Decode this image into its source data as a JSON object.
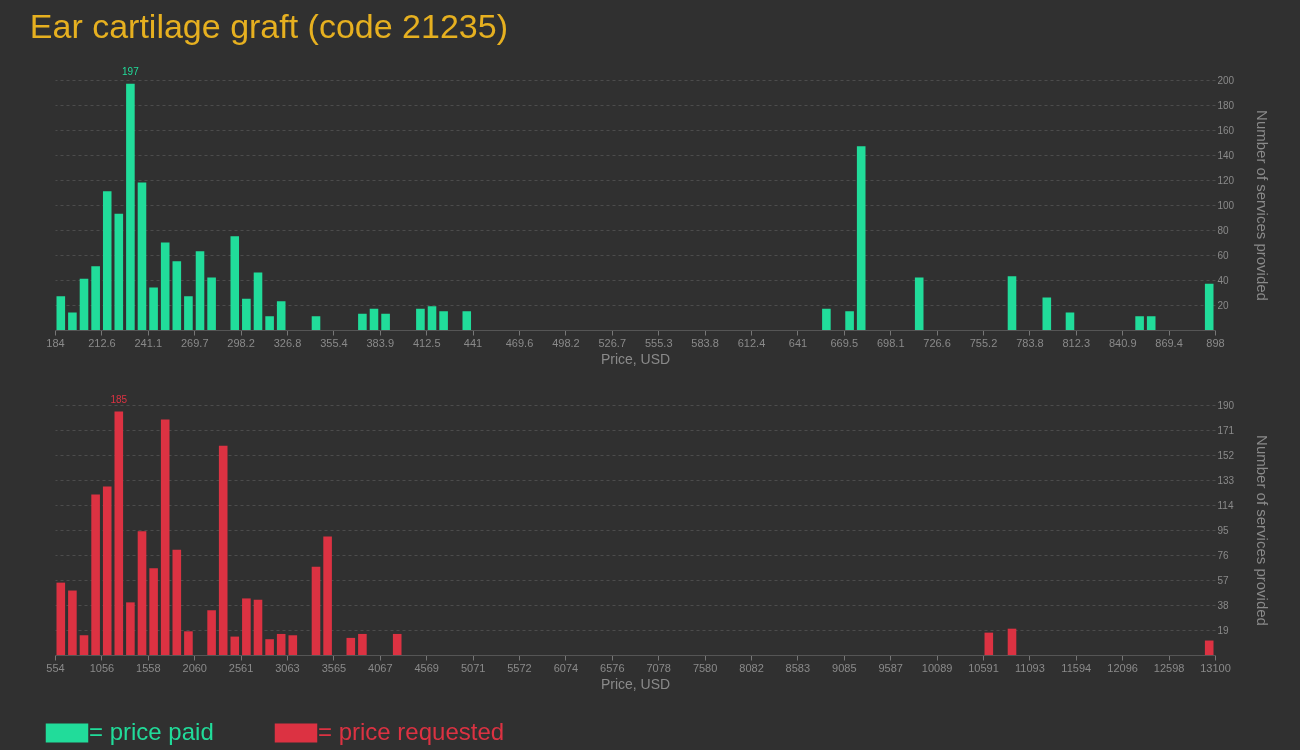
{
  "chart_data": [
    {
      "type": "histogram",
      "title": "Ear cartilage graft (code 21235)",
      "xlabel": "Price, USD",
      "ylabel": "Number of services provided",
      "grid": "y",
      "legend": "bottom",
      "bins": [
        184,
        191.14,
        198.28,
        205.42,
        212.6,
        219.7,
        226.84,
        233.98,
        241.1,
        248.26,
        255.4,
        262.54,
        269.7,
        276.82,
        283.96,
        291.1,
        298.2,
        305.38,
        312.52,
        319.66,
        326.8,
        333.94,
        341.08,
        348.22,
        355.4,
        362.5,
        369.64,
        376.78,
        383.9,
        391.06,
        398.2,
        405.34,
        412.5,
        419.62,
        426.76,
        433.9,
        441,
        448.18,
        455.32,
        462.46,
        469.6,
        476.74,
        483.88,
        491.02,
        498.2,
        505.3,
        512.44,
        519.58,
        526.7,
        533.86,
        541,
        548.14,
        555.3,
        562.42,
        569.56,
        576.7,
        583.8,
        590.98,
        598.12,
        605.26,
        612.4,
        619.54,
        626.68,
        633.82,
        641,
        648.1,
        655.24,
        662.38,
        669.5,
        676.66,
        683.8,
        690.94,
        698.1,
        705.22,
        712.36,
        719.5,
        726.6,
        733.78,
        740.92,
        748.06,
        755.2,
        762.34,
        769.48,
        776.62,
        783.8,
        790.9,
        798.04,
        805.18,
        812.3,
        819.46,
        826.6,
        833.74,
        840.9,
        848.02,
        855.16,
        862.3,
        869.4,
        876.58,
        883.72,
        890.86,
        898
      ],
      "series": [
        {
          "name": "= price paid",
          "color": "#21dc9a",
          "values": [
            27,
            14,
            41,
            51,
            111,
            93,
            197,
            118,
            34,
            70,
            55,
            27,
            63,
            42,
            0,
            75,
            25,
            46,
            11,
            23,
            0,
            0,
            11,
            0,
            0,
            0,
            13,
            17,
            13,
            0,
            0,
            17,
            19,
            15,
            0,
            15,
            0,
            0,
            0,
            0,
            0,
            0,
            0,
            0,
            0,
            0,
            0,
            0,
            0,
            0,
            0,
            0,
            0,
            0,
            0,
            0,
            0,
            0,
            0,
            0,
            0,
            0,
            0,
            0,
            0,
            0,
            17,
            0,
            15,
            147,
            0,
            0,
            0,
            0,
            42,
            0,
            0,
            0,
            0,
            0,
            0,
            0,
            43,
            0,
            0,
            26,
            0,
            14,
            0,
            0,
            0,
            0,
            0,
            11,
            11,
            0,
            0,
            0,
            0,
            37
          ]
        }
      ],
      "annotations": [
        {
          "text": "197",
          "x": 230.41,
          "y": 197
        }
      ],
      "xlim": [
        184,
        898
      ],
      "xticks": [
        184,
        212.6,
        241.1,
        269.7,
        298.2,
        326.8,
        355.4,
        383.9,
        412.5,
        441,
        469.6,
        498.2,
        526.7,
        555.3,
        583.8,
        612.4,
        641,
        669.5,
        698.1,
        726.6,
        755.2,
        783.8,
        812.3,
        840.9,
        869.4,
        898
      ],
      "ylim": [
        0,
        200
      ],
      "yticks": [
        20,
        40,
        60,
        80,
        100,
        120,
        140,
        160,
        180,
        200
      ]
    },
    {
      "type": "histogram",
      "xlabel": "Price, USD",
      "ylabel": "Number of services provided",
      "grid": "y",
      "legend": "bottom",
      "bins": [
        554,
        679.46,
        804.92,
        930.38,
        1056,
        1181.3,
        1306.76,
        1432.22,
        1558,
        1683.14,
        1808.6,
        1934.06,
        2060,
        2184.98,
        2310.44,
        2435.9,
        2561,
        2686.82,
        2812.28,
        2937.74,
        3063,
        3188.66,
        3314.12,
        3439.58,
        3565,
        3690.5,
        3815.96,
        3941.42,
        4067,
        4192.34,
        4317.8,
        4443.26,
        4569,
        4694.18,
        4819.64,
        4945.1,
        5071,
        5196.02,
        5321.48,
        5446.94,
        5572,
        5697.86,
        5823.32,
        5948.78,
        6074,
        6199.7,
        6325.16,
        6450.62,
        6576,
        6701.54,
        6827,
        6952.46,
        7078,
        7203.38,
        7328.84,
        7454.3,
        7580,
        7705.22,
        7830.68,
        7956.14,
        8082,
        8207.06,
        8332.52,
        8457.98,
        8583,
        8708.9,
        8834.36,
        8959.82,
        9085,
        9210.74,
        9336.2,
        9461.66,
        9587,
        9712.58,
        9838.04,
        9963.5,
        10089,
        10214.42,
        10339.88,
        10465.34,
        10591,
        10716.26,
        10841.72,
        10967.18,
        11093,
        11218.1,
        11343.56,
        11469.02,
        11594,
        11719.94,
        11845.4,
        11970.86,
        12096,
        12221.78,
        12347.24,
        12472.7,
        12598,
        12723.62,
        12849.08,
        12974.54,
        13100
      ],
      "series": [
        {
          "name": "= price requested",
          "color": "#dc3242",
          "values": [
            55,
            49,
            15,
            122,
            128,
            185,
            40,
            94,
            66,
            179,
            80,
            18,
            0,
            34,
            159,
            14,
            43,
            42,
            12,
            16,
            15,
            0,
            67,
            90,
            0,
            13,
            16,
            0,
            0,
            16,
            0,
            0,
            0,
            0,
            0,
            0,
            0,
            0,
            0,
            0,
            0,
            0,
            0,
            0,
            0,
            0,
            0,
            0,
            0,
            0,
            0,
            0,
            0,
            0,
            0,
            0,
            0,
            0,
            0,
            0,
            0,
            0,
            0,
            0,
            0,
            0,
            0,
            0,
            0,
            0,
            0,
            0,
            0,
            0,
            0,
            0,
            0,
            0,
            0,
            0,
            17,
            0,
            20,
            0,
            0,
            0,
            0,
            0,
            0,
            0,
            0,
            0,
            0,
            0,
            0,
            0,
            0,
            0,
            0,
            11
          ]
        }
      ],
      "annotations": [
        {
          "text": "185",
          "x": 1244.03,
          "y": 185
        }
      ],
      "xlim": [
        554,
        13100
      ],
      "xticks": [
        554,
        1056,
        1558,
        2060,
        2561,
        3063,
        3565,
        4067,
        4569,
        5071,
        5572,
        6074,
        6576,
        7078,
        7580,
        8082,
        8583,
        9085,
        9587,
        10089,
        10591,
        11093,
        11594,
        12096,
        12598,
        13100
      ],
      "ylim": [
        0,
        190
      ],
      "yticks": [
        19,
        38,
        57,
        76,
        95,
        114,
        133,
        152,
        171,
        190
      ]
    }
  ]
}
